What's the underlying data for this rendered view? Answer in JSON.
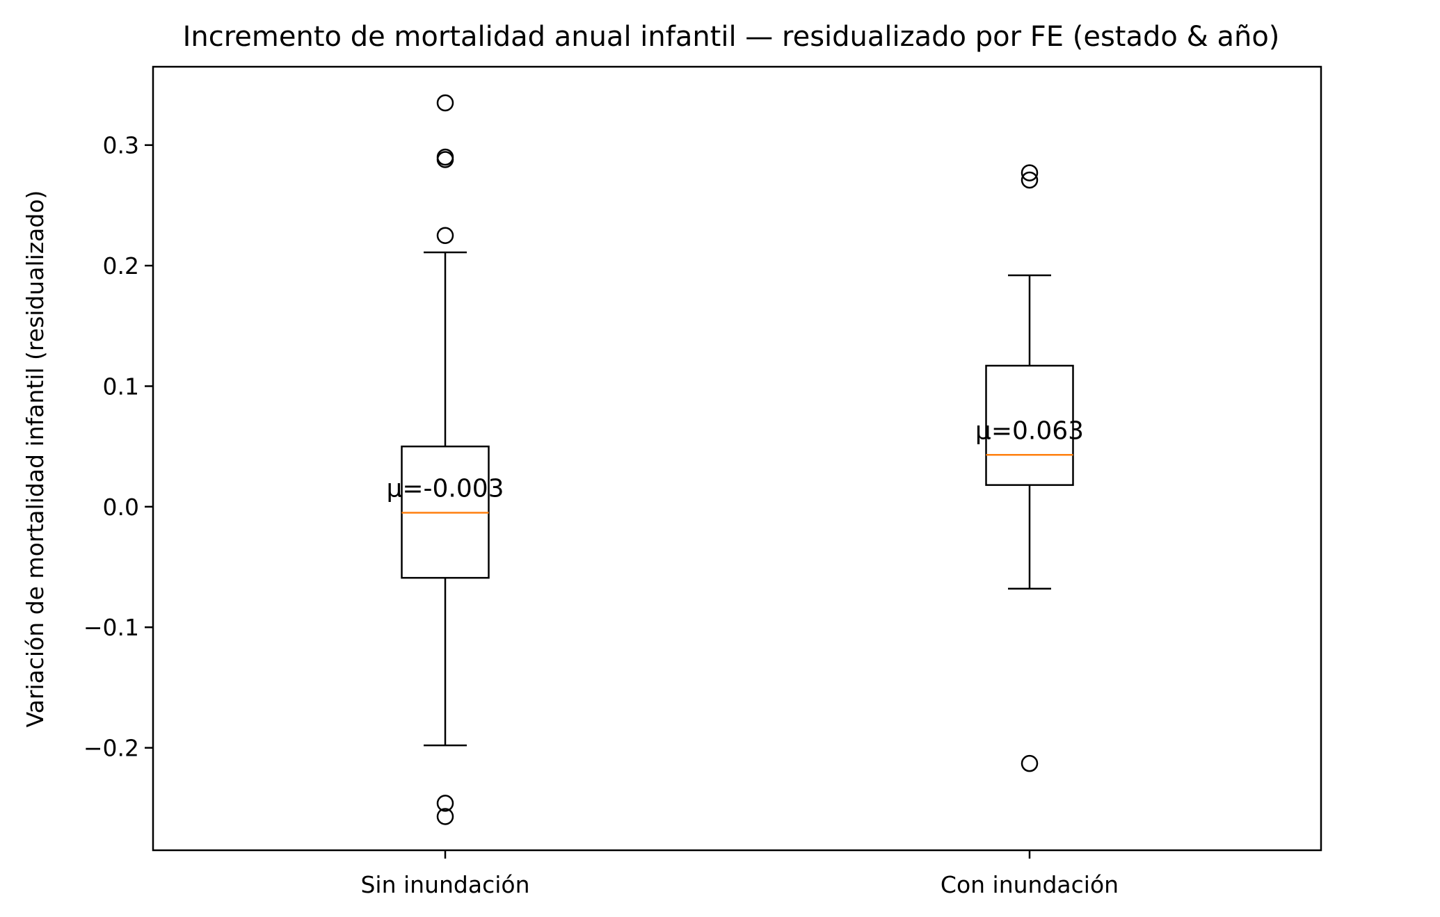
{
  "chart_data": {
    "type": "box",
    "title": "Incremento de mortalidad anual infantil — residualizado por FE (estado & año)",
    "xlabel": "",
    "ylabel": "Variación de mortalidad infantil (residualizado)",
    "ylim": [
      -0.285,
      0.365
    ],
    "yticks": [
      -0.2,
      -0.1,
      0.0,
      0.1,
      0.2,
      0.3
    ],
    "ytick_labels": [
      "−0.2",
      "−0.1",
      "0.0",
      "0.1",
      "0.2",
      "0.3"
    ],
    "grid": false,
    "categories": [
      "Sin inundación",
      "Con inundación"
    ],
    "series": [
      {
        "whisker_low": -0.198,
        "q1": -0.059,
        "median": -0.005,
        "q3": 0.05,
        "whisker_high": 0.211,
        "outliers": [
          0.335,
          0.29,
          0.288,
          0.225,
          -0.246,
          -0.257
        ],
        "mean_label": "μ=-0.003"
      },
      {
        "whisker_low": -0.068,
        "q1": 0.018,
        "median": 0.043,
        "q3": 0.117,
        "whisker_high": 0.192,
        "outliers": [
          0.277,
          0.271,
          -0.213
        ],
        "mean_label": "μ=0.063"
      }
    ],
    "colors": {
      "box": "#000000",
      "median": "#ff7f0e"
    }
  }
}
